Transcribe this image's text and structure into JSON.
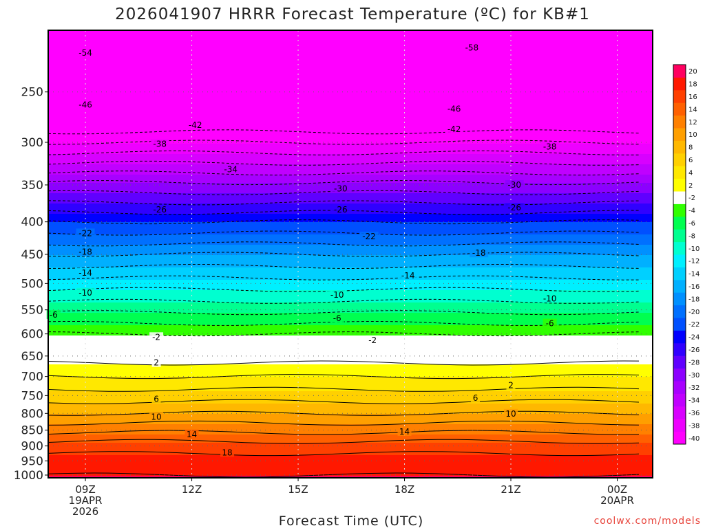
{
  "chart_data": {
    "type": "heatmap",
    "title": "2026041907 HRRR Forecast Temperature (ºC) for KB#1",
    "xlabel": "Forecast Time (UTC)",
    "ylabel": "",
    "credit": "coolwx.com/models",
    "x_ticks": [
      {
        "hour": 9,
        "lines": [
          "09Z",
          "19APR",
          "2026"
        ]
      },
      {
        "hour": 12,
        "lines": [
          "12Z"
        ]
      },
      {
        "hour": 15,
        "lines": [
          "15Z"
        ]
      },
      {
        "hour": 18,
        "lines": [
          "18Z"
        ]
      },
      {
        "hour": 21,
        "lines": [
          "21Z"
        ]
      },
      {
        "hour": 24,
        "lines": [
          "00Z",
          "20APR"
        ]
      }
    ],
    "xlim": [
      7.95,
      25.0
    ],
    "y_ticks": [
      250,
      300,
      350,
      400,
      450,
      500,
      550,
      600,
      650,
      700,
      750,
      800,
      850,
      900,
      950,
      1000
    ],
    "ylim_hPa": [
      200,
      1010
    ],
    "y_scale": "log",
    "colorbar": {
      "levels": [
        -40,
        -38,
        -36,
        -34,
        -32,
        -30,
        -28,
        -26,
        -24,
        -22,
        -20,
        -18,
        -16,
        -14,
        -12,
        -10,
        -8,
        -6,
        -4,
        -2,
        2,
        4,
        6,
        8,
        10,
        12,
        14,
        16,
        18,
        20
      ],
      "colors": [
        "#ff00ff",
        "#ee00ff",
        "#d800ff",
        "#c000ff",
        "#a800ff",
        "#8c00ff",
        "#6000ff",
        "#3000ff",
        "#0000ff",
        "#0050ff",
        "#0070ff",
        "#0090ff",
        "#00b0ff",
        "#00d0ff",
        "#00f0ff",
        "#00ffd0",
        "#00ff90",
        "#00ff50",
        "#30ff00",
        "#ffffff",
        "#ffff00",
        "#ffe800",
        "#ffd000",
        "#ffb800",
        "#ff9f00",
        "#ff8000",
        "#ff6000",
        "#ff4000",
        "#ff1800",
        "#ff0060"
      ]
    },
    "temperature_profile": {
      "pressure_hPa": [
        200,
        250,
        300,
        350,
        400,
        450,
        500,
        550,
        600,
        650,
        700,
        750,
        800,
        850,
        900,
        950,
        1000
      ],
      "temp_C": [
        -58,
        -47,
        -38,
        -29.5,
        -22,
        -16,
        -11,
        -6.5,
        -2,
        1,
        4,
        7,
        10,
        13.5,
        17,
        19,
        20
      ]
    },
    "contour_labels": [
      {
        "hour": 9.0,
        "p": 217,
        "text": "-54"
      },
      {
        "hour": 19.9,
        "p": 213,
        "text": "-58"
      },
      {
        "hour": 9.0,
        "p": 262,
        "text": "-46"
      },
      {
        "hour": 19.4,
        "p": 266,
        "text": "-46"
      },
      {
        "hour": 12.1,
        "p": 282,
        "text": "-42"
      },
      {
        "hour": 19.4,
        "p": 286,
        "text": "-42"
      },
      {
        "hour": 11.1,
        "p": 302,
        "text": "-38"
      },
      {
        "hour": 22.1,
        "p": 305,
        "text": "-38"
      },
      {
        "hour": 13.1,
        "p": 331,
        "text": "-34"
      },
      {
        "hour": 16.2,
        "p": 355,
        "text": "-30"
      },
      {
        "hour": 21.1,
        "p": 350,
        "text": "-30"
      },
      {
        "hour": 11.1,
        "p": 383,
        "text": "-26"
      },
      {
        "hour": 16.2,
        "p": 383,
        "text": "-26"
      },
      {
        "hour": 21.1,
        "p": 380,
        "text": "-26"
      },
      {
        "hour": 9.0,
        "p": 417,
        "text": "-22"
      },
      {
        "hour": 17.0,
        "p": 422,
        "text": "-22"
      },
      {
        "hour": 9.0,
        "p": 446,
        "text": "-18"
      },
      {
        "hour": 20.1,
        "p": 448,
        "text": "-18"
      },
      {
        "hour": 9.0,
        "p": 481,
        "text": "-14"
      },
      {
        "hour": 18.1,
        "p": 486,
        "text": "-14"
      },
      {
        "hour": 9.0,
        "p": 517,
        "text": "-10"
      },
      {
        "hour": 16.1,
        "p": 521,
        "text": "-10"
      },
      {
        "hour": 22.1,
        "p": 528,
        "text": "-10"
      },
      {
        "hour": 8.1,
        "p": 560,
        "text": "-6"
      },
      {
        "hour": 16.1,
        "p": 567,
        "text": "-6"
      },
      {
        "hour": 22.1,
        "p": 578,
        "text": "-6"
      },
      {
        "hour": 11.0,
        "p": 607,
        "text": "-2"
      },
      {
        "hour": 17.1,
        "p": 614,
        "text": "-2"
      },
      {
        "hour": 11.0,
        "p": 666,
        "text": "2"
      },
      {
        "hour": 21.0,
        "p": 723,
        "text": "2"
      },
      {
        "hour": 11.0,
        "p": 760,
        "text": "6"
      },
      {
        "hour": 20.0,
        "p": 757,
        "text": "6"
      },
      {
        "hour": 11.0,
        "p": 810,
        "text": "10"
      },
      {
        "hour": 21.0,
        "p": 801,
        "text": "10"
      },
      {
        "hour": 12.0,
        "p": 863,
        "text": "14"
      },
      {
        "hour": 18.0,
        "p": 855,
        "text": "14"
      },
      {
        "hour": 13.0,
        "p": 922,
        "text": "18"
      }
    ]
  }
}
